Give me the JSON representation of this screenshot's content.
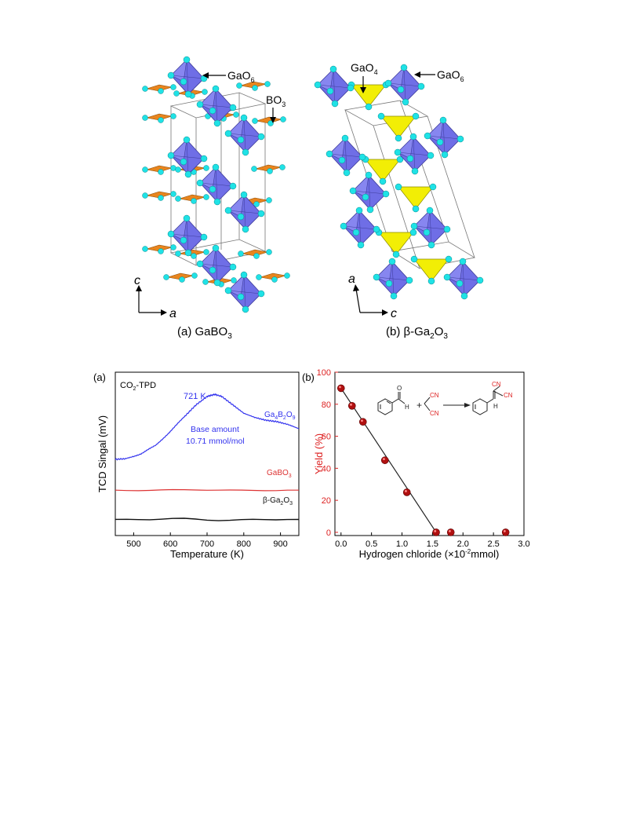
{
  "figure_top": {
    "panel_a": {
      "caption_prefix": "(a) ",
      "caption_formula": "GaBO",
      "caption_sub": "3",
      "label_gao6": "GaO",
      "label_gao6_sub": "6",
      "label_bo3": "BO",
      "label_bo3_sub": "3",
      "axis_vertical": "c",
      "axis_horizontal": "a"
    },
    "panel_b": {
      "caption_prefix": "(b) β-Ga",
      "caption_sub1": "2",
      "caption_mid": "O",
      "caption_sub2": "3",
      "label_gao4": "GaO",
      "label_gao4_sub": "4",
      "label_gao6": "GaO",
      "label_gao6_sub": "6",
      "axis_vertical": "a",
      "axis_horizontal": "c"
    },
    "colors": {
      "octahedron": "#6f6ee6",
      "borate": "#e8851e",
      "tetrahedron": "#f2ee05",
      "oxygen": "#1fe2e6"
    }
  },
  "chart_data": [
    {
      "panel": "(a)",
      "type": "line",
      "title": "CO2-TPD",
      "xlabel": "Temperature (K)",
      "ylabel": "TCD Singal (mV)",
      "xlim": [
        450,
        950
      ],
      "xticks": [
        500,
        600,
        700,
        800,
        900
      ],
      "yticks": "none",
      "annotations": [
        "721 K",
        "Base amount",
        "10.71 mmol/mol"
      ],
      "series": [
        {
          "name": "Ga4B2O9",
          "color": "#3333ee",
          "x": [
            450,
            480,
            520,
            560,
            600,
            640,
            670,
            700,
            721,
            740,
            770,
            800,
            830,
            860,
            890,
            920,
            950
          ],
          "y": [
            0.0,
            0.01,
            0.08,
            0.2,
            0.4,
            0.62,
            0.78,
            0.9,
            0.93,
            0.9,
            0.78,
            0.66,
            0.6,
            0.56,
            0.54,
            0.5,
            0.44
          ]
        },
        {
          "name": "GaBO3",
          "color": "#dd3333",
          "x": [
            450,
            950
          ],
          "y": [
            -0.44,
            -0.44
          ]
        },
        {
          "name": "β-Ga2O3",
          "color": "#111111",
          "x": [
            450,
            950
          ],
          "y": [
            -0.86,
            -0.86
          ]
        }
      ]
    },
    {
      "panel": "(b)",
      "type": "scatter",
      "xlabel": "Hydrogen chloride (×10⁻²mmol)",
      "ylabel": "Yield (%)",
      "xlim": [
        -0.1,
        3.0
      ],
      "ylim": [
        -2,
        100
      ],
      "xticks": [
        0.0,
        0.5,
        1.0,
        1.5,
        2.0,
        2.5,
        3.0
      ],
      "yticks": [
        0,
        20,
        40,
        60,
        80,
        100
      ],
      "points": {
        "x": [
          0.0,
          0.18,
          0.36,
          0.72,
          1.08,
          1.56,
          1.8,
          2.7
        ],
        "y": [
          90,
          79,
          69,
          45,
          25,
          0,
          0,
          0
        ]
      },
      "fit_line": {
        "x": [
          0.0,
          1.56
        ],
        "y": [
          90,
          0
        ]
      },
      "reaction_labels": {
        "aldehyde_o": "O",
        "aldehyde_h": "H",
        "plus": "+",
        "cn": "CN",
        "product_h": "H"
      }
    }
  ],
  "chart_text": {
    "a_panel_label": "(a)",
    "a_title_pre": "CO",
    "a_title_sub": "2",
    "a_title_post": "-TPD",
    "a_ann_temp": "721 K",
    "a_ann_base": "Base amount",
    "a_ann_value": "10.71 mmol/mol",
    "a_series1_pre": "Ga",
    "a_series1_s1": "4",
    "a_series1_mid1": "B",
    "a_series1_s2": "2",
    "a_series1_mid2": "O",
    "a_series1_s3": "9",
    "a_series2_pre": "GaBO",
    "a_series2_sub": "3",
    "a_series3_pre": "β-Ga",
    "a_series3_s1": "2",
    "a_series3_mid": "O",
    "a_series3_s2": "3",
    "a_xlabel": "Temperature (K)",
    "a_ylabel": "TCD Singal (mV)",
    "b_panel_label": "(b)",
    "b_ylabel": "Yield (%)",
    "b_xlabel_pre": "Hydrogen chloride (×10",
    "b_xlabel_sup": "-2",
    "b_xlabel_post": "mmol)"
  }
}
